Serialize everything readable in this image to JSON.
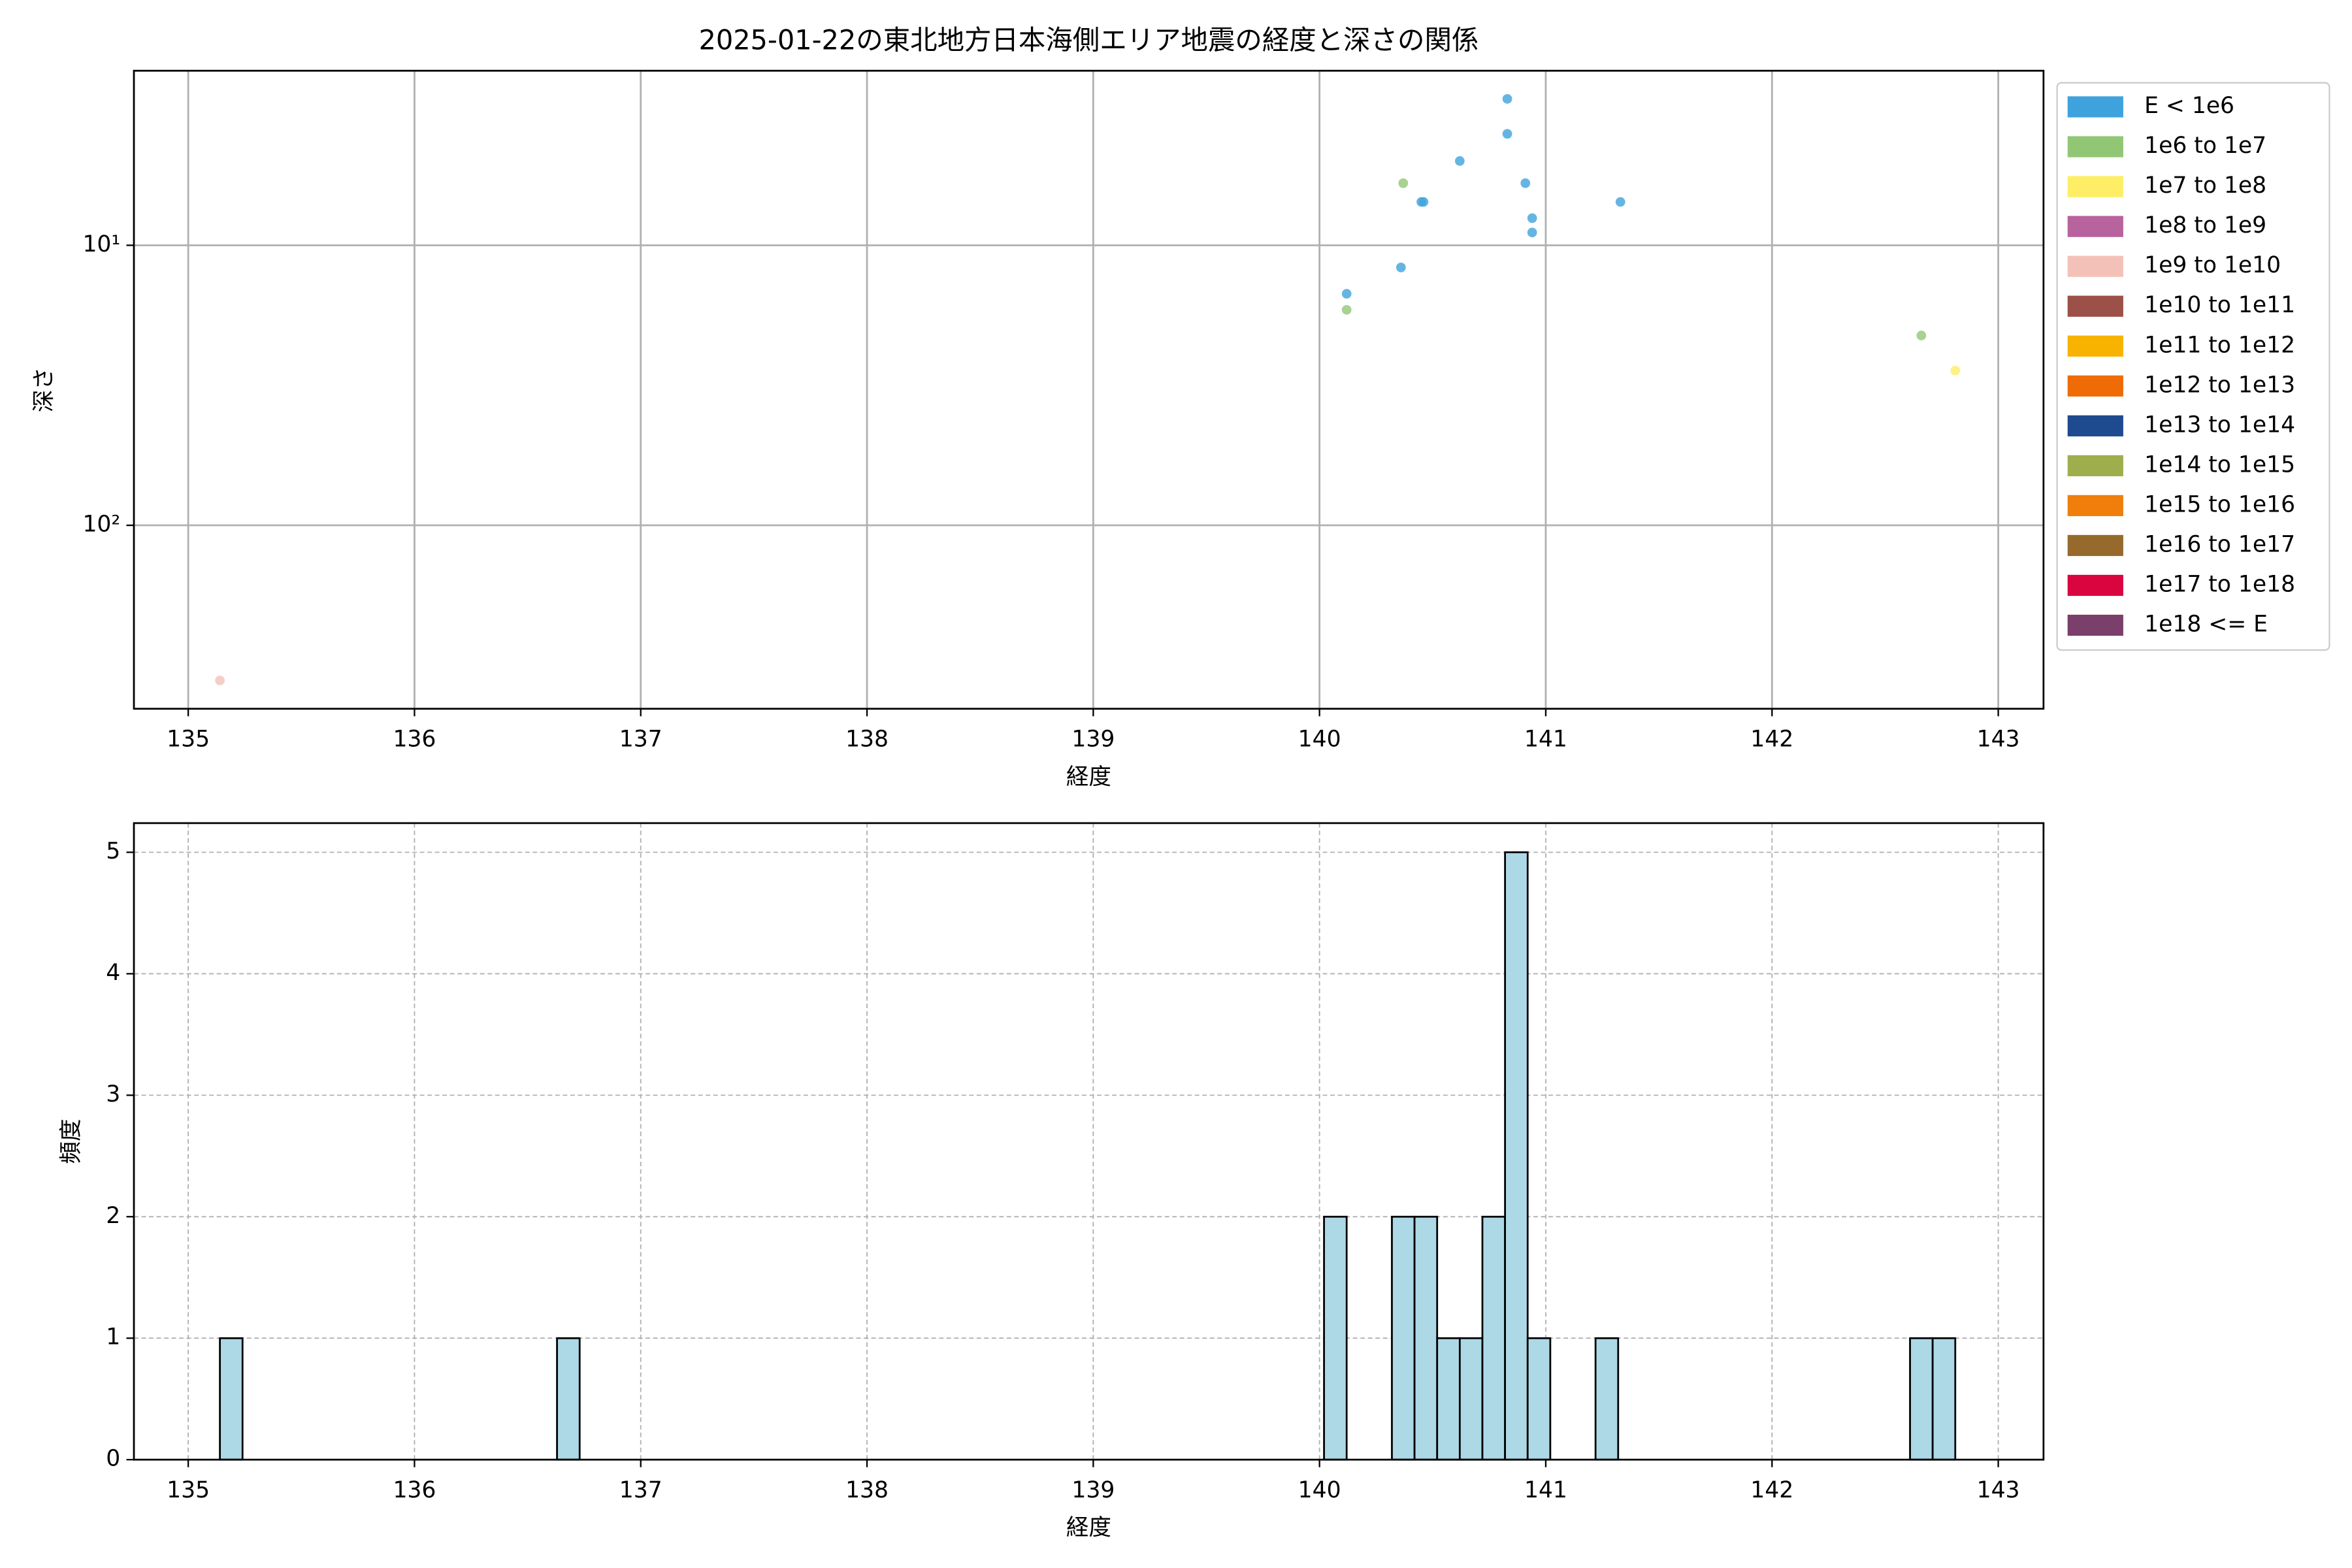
{
  "chart_data": [
    {
      "type": "scatter",
      "title": "2025-01-22の東北地方日本海側エリア地震の経度と深さの関係",
      "x_label": "経度",
      "y_label": "深さ",
      "y_scale": "log",
      "grid": true,
      "grid_style": "solid",
      "legend": "outside right",
      "xlim": [
        134.76,
        143.2
      ],
      "xticks": [
        135,
        136,
        137,
        138,
        139,
        140,
        141,
        142,
        143
      ],
      "ylim": [
        452,
        2.38
      ],
      "yticks": [
        {
          "value": 10,
          "label": "10¹"
        },
        {
          "value": 100,
          "label": "10²"
        }
      ],
      "series": [
        {
          "name": "E < 1e6",
          "color": "#3ea2dc",
          "x": [
            140.12,
            140.36,
            140.45,
            140.46,
            140.62,
            140.83,
            140.83,
            140.91,
            140.94,
            140.94,
            141.33
          ],
          "values": [
            14.9,
            12.0,
            7.0,
            7.0,
            5.0,
            3.0,
            4.0,
            6.0,
            8.0,
            9.0,
            7.0
          ]
        },
        {
          "name": "1e6 to 1e7",
          "color": "#91c774",
          "x": [
            140.12,
            140.37,
            142.66
          ],
          "values": [
            17.0,
            6.0,
            21.0
          ]
        },
        {
          "name": "1e7 to 1e8",
          "color": "#fdee65",
          "x": [
            142.81
          ],
          "values": [
            28.0
          ]
        },
        {
          "name": "1e8 to 1e9",
          "color": "#b8629e",
          "x": [],
          "values": []
        },
        {
          "name": "1e9 to 1e10",
          "color": "#f4c1b9",
          "x": [
            135.14
          ],
          "values": [
            358
          ]
        },
        {
          "name": "1e10 to 1e11",
          "color": "#9b5048",
          "x": [],
          "values": []
        },
        {
          "name": "1e11 to 1e12",
          "color": "#f8b200",
          "x": [],
          "values": []
        },
        {
          "name": "1e12 to 1e13",
          "color": "#ee6b06",
          "x": [],
          "values": []
        },
        {
          "name": "1e13 to 1e14",
          "color": "#1e4a90",
          "x": [],
          "values": []
        },
        {
          "name": "1e14 to 1e15",
          "color": "#9eae4d",
          "x": [],
          "values": []
        },
        {
          "name": "1e15 to 1e16",
          "color": "#ef7e0b",
          "x": [],
          "values": []
        },
        {
          "name": "1e16 to 1e17",
          "color": "#956a2c",
          "x": [],
          "values": []
        },
        {
          "name": "1e17 to 1e18",
          "color": "#d9053f",
          "x": [],
          "values": []
        },
        {
          "name": "1e18 <= E",
          "color": "#7a3f6a",
          "x": [],
          "values": []
        }
      ]
    },
    {
      "type": "histogram",
      "x_label": "経度",
      "y_label": "頻度",
      "grid": true,
      "grid_style": "dashed",
      "color": "#add8e6",
      "xlim": [
        134.76,
        143.2
      ],
      "xticks": [
        135,
        136,
        137,
        138,
        139,
        140,
        141,
        142,
        143
      ],
      "ylim": [
        0,
        5.24
      ],
      "yticks": [
        0,
        1,
        2,
        3,
        4,
        5
      ],
      "bins": [
        135.14,
        135.24,
        135.34,
        135.44,
        135.54,
        135.64,
        135.74,
        135.84,
        135.94,
        136.04,
        136.14,
        136.24,
        136.34,
        136.43,
        136.53,
        136.63,
        136.73,
        136.83,
        136.93,
        137.03,
        137.13,
        137.23,
        137.33,
        137.43,
        137.53,
        137.63,
        137.73,
        137.83,
        137.93,
        138.03,
        138.13,
        138.23,
        138.33,
        138.43,
        138.53,
        138.63,
        138.73,
        138.83,
        138.93,
        139.02,
        139.12,
        139.22,
        139.32,
        139.42,
        139.52,
        139.62,
        139.72,
        139.82,
        139.92,
        140.02,
        140.12,
        140.22,
        140.32,
        140.42,
        140.52,
        140.62,
        140.72,
        140.82,
        140.92,
        141.02,
        141.12,
        141.22,
        141.32,
        141.42,
        141.52,
        141.62,
        141.71,
        141.81,
        141.91,
        142.01,
        142.11,
        142.21,
        142.31,
        142.41,
        142.51,
        142.61,
        142.71,
        142.81
      ],
      "counts": [
        1,
        0,
        0,
        0,
        0,
        0,
        0,
        0,
        0,
        0,
        0,
        0,
        0,
        0,
        0,
        1,
        0,
        0,
        0,
        0,
        0,
        0,
        0,
        0,
        0,
        0,
        0,
        0,
        0,
        0,
        0,
        0,
        0,
        0,
        0,
        0,
        0,
        0,
        0,
        0,
        0,
        0,
        0,
        0,
        0,
        0,
        0,
        0,
        0,
        2,
        0,
        0,
        2,
        2,
        1,
        1,
        2,
        5,
        1,
        0,
        0,
        1,
        0,
        0,
        0,
        0,
        0,
        0,
        0,
        0,
        0,
        0,
        0,
        0,
        0,
        1,
        1
      ]
    }
  ]
}
